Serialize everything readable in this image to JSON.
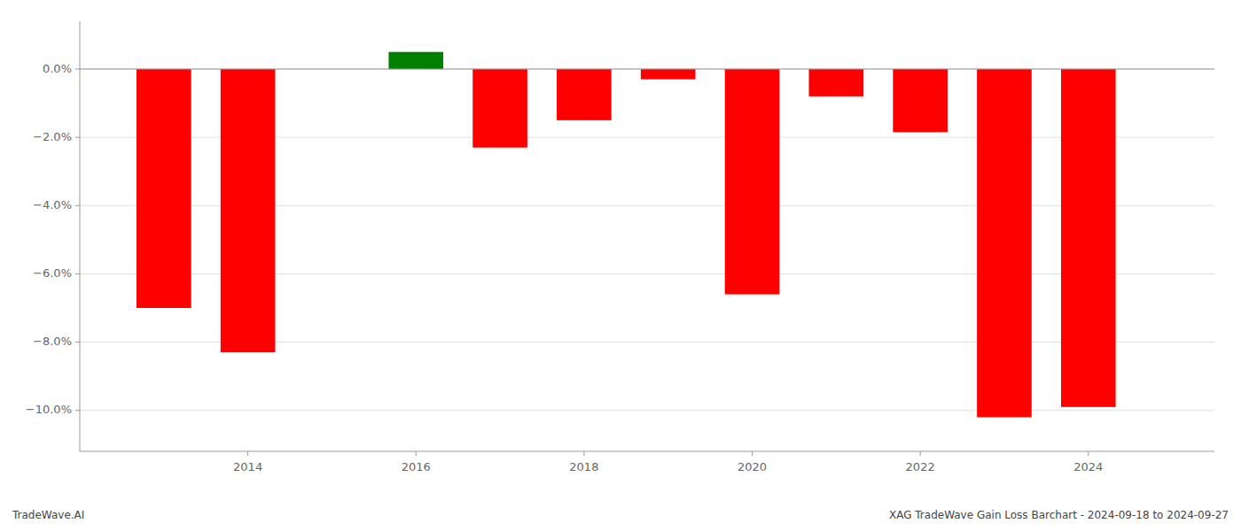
{
  "chart_data": {
    "type": "bar",
    "title": "XAG TradeWave Gain Loss Barchart - 2024-09-18 to 2024-09-27",
    "annotations": [
      "TradeWave.AI"
    ],
    "x": [
      2013,
      2014,
      2016,
      2017,
      2018,
      2019,
      2020,
      2021,
      2022,
      2023,
      2024
    ],
    "values": [
      -0.07,
      -0.083,
      0.005,
      -0.023,
      -0.015,
      -0.003,
      -0.066,
      -0.008,
      -0.0185,
      -0.102,
      -0.099
    ],
    "colors": [
      "#ff0000",
      "#ff0000",
      "#008000",
      "#ff0000",
      "#ff0000",
      "#ff0000",
      "#ff0000",
      "#ff0000",
      "#ff0000",
      "#ff0000",
      "#ff0000"
    ],
    "xlim": [
      2012.0,
      2025.5
    ],
    "xticks": [
      2014,
      2016,
      2018,
      2020,
      2022,
      2024
    ],
    "ylim": [
      -0.112,
      0.014
    ],
    "yticks": [
      {
        "value": 0.0,
        "label": "0.0%"
      },
      {
        "value": -0.02,
        "label": "−2.0%"
      },
      {
        "value": -0.04,
        "label": "−4.0%"
      },
      {
        "value": -0.06,
        "label": "−6.0%"
      },
      {
        "value": -0.08,
        "label": "−8.0%"
      },
      {
        "value": -0.1,
        "label": "−10.0%"
      }
    ],
    "grid": true
  }
}
